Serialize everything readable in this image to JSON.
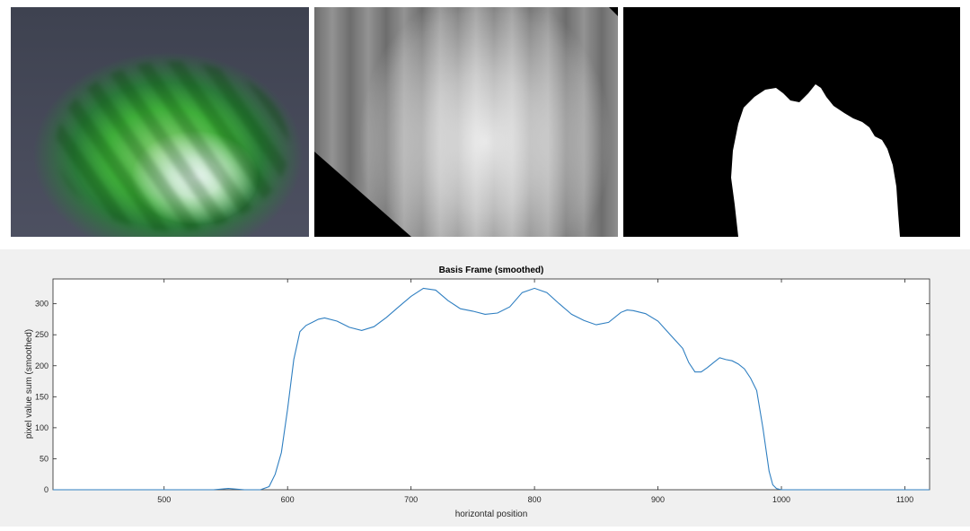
{
  "panels": [
    {
      "name": "green-beam-photo"
    },
    {
      "name": "grayscale-image"
    },
    {
      "name": "binary-mask"
    }
  ],
  "chart_data": {
    "type": "line",
    "title": "Basis Frame (smoothed)",
    "xlabel": "horizontal position",
    "ylabel": "pixel value sum (smoothed)",
    "xlim": [
      410,
      1120
    ],
    "ylim": [
      0,
      340
    ],
    "xticks": [
      500,
      600,
      700,
      800,
      900,
      1000,
      1100
    ],
    "yticks": [
      0,
      50,
      100,
      150,
      200,
      250,
      300
    ],
    "grid": false,
    "series": [
      {
        "color": "#2f7fc1",
        "x": [
          410,
          540,
          552,
          565,
          578,
          585,
          590,
          595,
          600,
          605,
          610,
          615,
          620,
          625,
          630,
          640,
          650,
          660,
          670,
          680,
          690,
          700,
          710,
          720,
          730,
          740,
          750,
          760,
          770,
          780,
          790,
          800,
          810,
          820,
          830,
          840,
          850,
          860,
          870,
          875,
          880,
          890,
          900,
          910,
          920,
          925,
          930,
          935,
          940,
          945,
          950,
          955,
          960,
          965,
          970,
          975,
          980,
          985,
          990,
          993,
          996,
          1000,
          1005,
          1120
        ],
        "y": [
          0,
          0,
          2,
          0,
          0,
          5,
          25,
          60,
          130,
          210,
          255,
          265,
          270,
          275,
          277,
          272,
          262,
          257,
          263,
          278,
          295,
          312,
          325,
          322,
          305,
          292,
          288,
          283,
          285,
          295,
          318,
          325,
          318,
          300,
          283,
          273,
          266,
          270,
          286,
          290,
          289,
          284,
          272,
          250,
          228,
          205,
          190,
          190,
          197,
          205,
          213,
          210,
          208,
          203,
          195,
          180,
          160,
          100,
          30,
          8,
          2,
          0,
          0,
          0
        ]
      }
    ]
  }
}
